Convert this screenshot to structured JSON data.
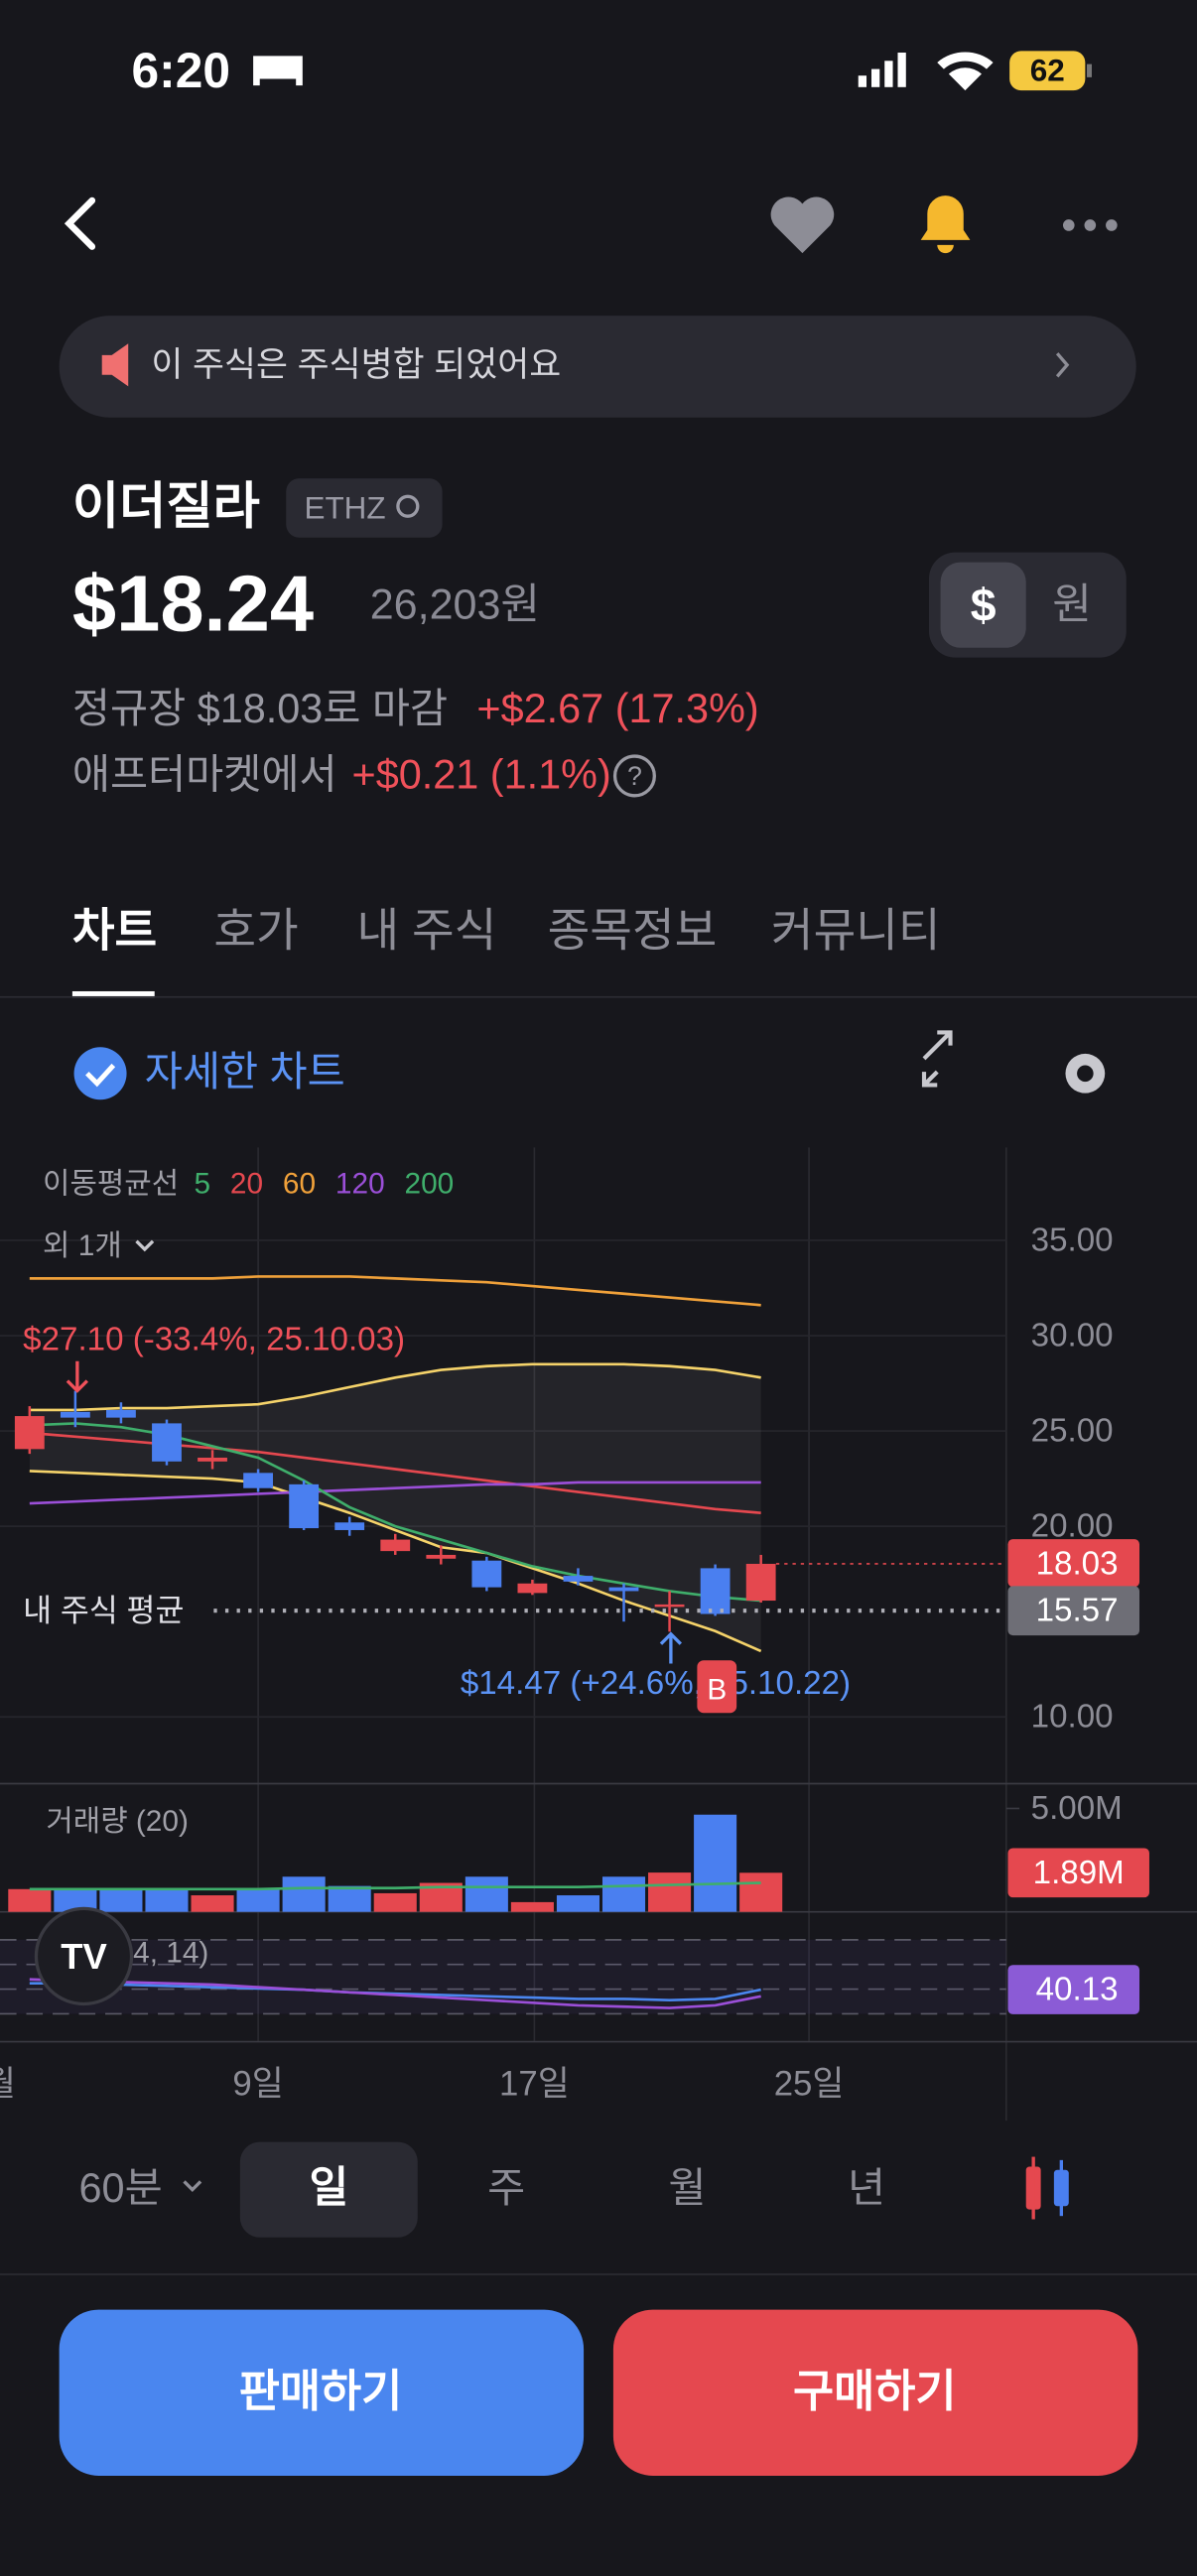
{
  "status_bar": {
    "time": "6:20",
    "battery": "62"
  },
  "notice": "이 주식은 주식병합 되었어요",
  "stock": {
    "name": "이더질라",
    "ticker": "ETHZ",
    "price": "$18.24",
    "price_krw": "26,203원",
    "close_label": "정규장 $18.03로 마감",
    "close_change": "+$2.67 (17.3%)",
    "after_label": "애프터마켓에서",
    "after_change": "+$0.21 (1.1%)"
  },
  "currency_toggle": [
    "$",
    "원"
  ],
  "tabs": [
    "차트",
    "호가",
    "내 주식",
    "종목정보",
    "커뮤니티"
  ],
  "detail_chart_label": "자세한 차트",
  "chart_data": {
    "type": "candlestick",
    "ma_legend": {
      "title": "이동평균선",
      "items": [
        {
          "name": "5",
          "color": "#3fae6b"
        },
        {
          "name": "20",
          "color": "#e5484f"
        },
        {
          "name": "60",
          "color": "#f0a13a"
        },
        {
          "name": "120",
          "color": "#9b4fd8"
        },
        {
          "name": "200",
          "color": "#3fae6b"
        }
      ],
      "more": "외 1개"
    },
    "up_color": "#e5484f",
    "down_color": "#4a7ff0",
    "open": [
      24.05,
      26.0,
      26.1,
      25.4,
      23.4,
      22.8,
      22.2,
      20.2,
      18.7,
      18.3,
      18.2,
      16.5,
      17.4,
      16.8,
      15.8,
      17.8,
      16.1
    ],
    "high": [
      26.3,
      27.1,
      26.5,
      25.6,
      24.0,
      23.0,
      22.4,
      20.5,
      19.6,
      19.0,
      18.4,
      17.2,
      17.8,
      17.0,
      16.6,
      18.0,
      18.5
    ],
    "low": [
      23.8,
      25.2,
      25.4,
      23.2,
      23.0,
      21.8,
      19.8,
      19.5,
      18.5,
      18.0,
      16.6,
      16.4,
      16.9,
      15.0,
      14.47,
      15.3,
      16.0
    ],
    "close": [
      25.78,
      25.7,
      25.7,
      23.4,
      23.6,
      22.0,
      19.9,
      19.8,
      19.3,
      18.5,
      16.8,
      17.0,
      17.1,
      16.6,
      15.9,
      15.4,
      18.03
    ],
    "lines": [
      {
        "color": "#f0a13a",
        "values": [
          33.0,
          33.0,
          33.0,
          33.0,
          33.0,
          33.1,
          33.1,
          33.1,
          33.0,
          32.9,
          32.8,
          32.6,
          32.4,
          32.2,
          32.0,
          31.8,
          31.6
        ]
      },
      {
        "color": "#f5d36a",
        "values": [
          26.1,
          26.1,
          26.2,
          26.2,
          26.3,
          26.4,
          26.8,
          27.3,
          27.8,
          28.2,
          28.4,
          28.5,
          28.5,
          28.5,
          28.4,
          28.2,
          27.8
        ]
      },
      {
        "color": "#f5d36a",
        "values": [
          22.9,
          22.8,
          22.7,
          22.6,
          22.5,
          22.3,
          21.5,
          20.7,
          19.8,
          18.9,
          18.6,
          17.8,
          17.0,
          16.1,
          15.3,
          14.5,
          13.45
        ]
      },
      {
        "color": "#e5484f",
        "values": [
          24.9,
          24.7,
          24.5,
          24.3,
          24.1,
          23.9,
          23.6,
          23.3,
          23.0,
          22.7,
          22.4,
          22.1,
          21.8,
          21.5,
          21.2,
          20.9,
          20.7
        ]
      },
      {
        "color": "#9b4fd8",
        "values": [
          21.2,
          21.3,
          21.4,
          21.5,
          21.6,
          21.7,
          21.8,
          21.9,
          22.0,
          22.1,
          22.2,
          22.2,
          22.3,
          22.3,
          22.3,
          22.3,
          22.3
        ]
      },
      {
        "color": "#3fae6b",
        "values": [
          25.3,
          25.4,
          25.2,
          24.8,
          24.2,
          23.6,
          22.4,
          21.0,
          20.0,
          19.3,
          18.6,
          17.9,
          17.4,
          17.0,
          16.6,
          16.3,
          16.1
        ]
      }
    ],
    "ylim": [
      6.5,
      39.7
    ],
    "yticks": [
      {
        "value": 35,
        "label": "35.00"
      },
      {
        "value": 30,
        "label": "30.00"
      },
      {
        "value": 25,
        "label": "25.00"
      },
      {
        "value": 20,
        "label": "20.00"
      },
      {
        "value": 10,
        "label": "10.00"
      }
    ],
    "x_labels": [
      "월",
      "9일",
      "17일",
      "25일"
    ],
    "high_note": "$27.10 (-33.4%, 25.10.03)",
    "low_note": "$14.47 (+24.6%, 25.10.22)",
    "buy_marker": "B",
    "avg_label": "내 주식 평균",
    "last_price": 18.03,
    "avg_price": 15.57,
    "volume": {
      "title": "거래량 (20)",
      "values": [
        1.1,
        1.1,
        1.1,
        1.1,
        0.8,
        1.1,
        1.7,
        1.25,
        0.9,
        1.4,
        1.7,
        0.47,
        0.8,
        1.7,
        1.9,
        4.7,
        1.89
      ],
      "ma": [
        1.1,
        1.1,
        1.1,
        1.1,
        1.1,
        1.1,
        1.15,
        1.15,
        1.15,
        1.2,
        1.2,
        1.2,
        1.2,
        1.25,
        1.3,
        1.35,
        1.4
      ],
      "ylim": [
        0,
        6.2
      ],
      "yticks": [
        {
          "value": 5,
          "label": "5.00M"
        }
      ],
      "last": {
        "value": 1.89,
        "label": "1.89M"
      }
    },
    "rsi": {
      "title": "RSI (14, 14)",
      "ylim": [
        0,
        100
      ],
      "values": [
        45,
        45,
        44,
        43,
        42,
        41,
        40,
        38,
        37,
        36,
        35,
        34,
        33,
        33,
        32,
        33,
        40.13
      ],
      "signal": [
        48,
        47,
        46,
        45,
        44,
        42,
        40,
        38,
        36,
        34,
        32,
        30,
        28,
        27,
        26,
        28,
        35
      ],
      "last": 40.13
    }
  },
  "periods": [
    "60분",
    "일",
    "주",
    "월",
    "년"
  ],
  "buttons": {
    "sell": "판매하기",
    "buy": "구매하기"
  }
}
